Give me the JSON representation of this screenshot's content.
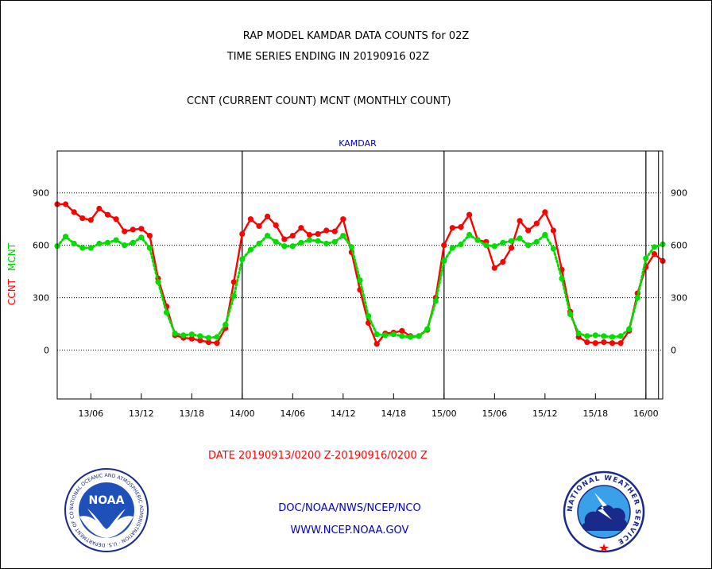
{
  "header": {
    "line1": "RAP MODEL KAMDAR DATA COUNTS for 02Z",
    "line2": "TIME SERIES ENDING IN 20190916 02Z",
    "subtitle": "CCNT (CURRENT COUNT) MCNT (MONTHLY COUNT)"
  },
  "footer": {
    "date_range": "DATE 20190913/0200 Z-20190916/0200 Z",
    "org": "DOC/NOAA/NWS/NCEP/NCO",
    "url": "WWW.NCEP.NOAA.GOV"
  },
  "logos": {
    "left": {
      "icon": "noaa-logo",
      "text": "NOAA",
      "ring_text": "NATIONAL OCEANIC AND ATMOSPHERIC ADMINISTRATION · U.S. DEPARTMENT OF COMMERCE"
    },
    "right": {
      "icon": "nws-logo",
      "ring_text": "NATIONAL WEATHER SERVICE"
    }
  },
  "chart_data": {
    "type": "line",
    "title": "KAMDAR",
    "ylabel_parts": [
      {
        "text": "CCNT",
        "color": "#ff0000"
      },
      {
        "text": "MCNT",
        "color": "#00cc00"
      }
    ],
    "ylim": [
      -280,
      1140
    ],
    "yticks": [
      0,
      300,
      600,
      900
    ],
    "ytick_labels": [
      "0",
      "300",
      "600",
      "900"
    ],
    "xlim": [
      0,
      72
    ],
    "xticks": [
      4,
      10,
      16,
      22,
      28,
      34,
      40,
      46,
      52,
      58,
      64,
      70
    ],
    "xtick_labels": [
      "13/06",
      "13/12",
      "13/18",
      "14/00",
      "14/06",
      "14/12",
      "14/18",
      "15/00",
      "15/06",
      "15/12",
      "15/18",
      "16/00"
    ],
    "day_boundaries": [
      22,
      46,
      70
    ],
    "grid": "horizontal dotted",
    "x_units": "hours since 20190913/0200 Z",
    "series": [
      {
        "name": "CCNT",
        "color": "#ff0000",
        "style": "solid",
        "values": [
          835,
          835,
          790,
          755,
          745,
          810,
          775,
          750,
          680,
          690,
          695,
          655,
          410,
          250,
          85,
          70,
          65,
          55,
          45,
          40,
          125,
          390,
          665,
          750,
          710,
          765,
          715,
          635,
          655,
          700,
          660,
          665,
          685,
          680,
          750,
          560,
          345,
          155,
          35,
          95,
          100,
          110,
          80,
          80,
          115,
          300,
          600,
          700,
          705,
          775,
          630,
          620,
          470,
          505,
          585,
          740,
          685,
          725,
          790,
          685,
          460,
          220,
          75,
          45,
          40,
          45,
          40,
          40,
          110,
          325,
          475,
          550,
          510
        ]
      },
      {
        "name": "MCNT",
        "color": "#00dd00",
        "style": "dotted",
        "values": [
          595,
          650,
          610,
          585,
          585,
          610,
          615,
          630,
          600,
          615,
          645,
          585,
          390,
          215,
          95,
          85,
          90,
          80,
          70,
          75,
          145,
          310,
          520,
          575,
          610,
          655,
          620,
          595,
          595,
          615,
          630,
          625,
          610,
          620,
          655,
          590,
          400,
          195,
          90,
          85,
          90,
          80,
          75,
          80,
          120,
          280,
          510,
          585,
          605,
          660,
          630,
          600,
          595,
          615,
          625,
          640,
          600,
          620,
          660,
          580,
          410,
          205,
          95,
          80,
          85,
          80,
          75,
          80,
          120,
          300,
          525,
          590,
          605
        ]
      }
    ]
  }
}
